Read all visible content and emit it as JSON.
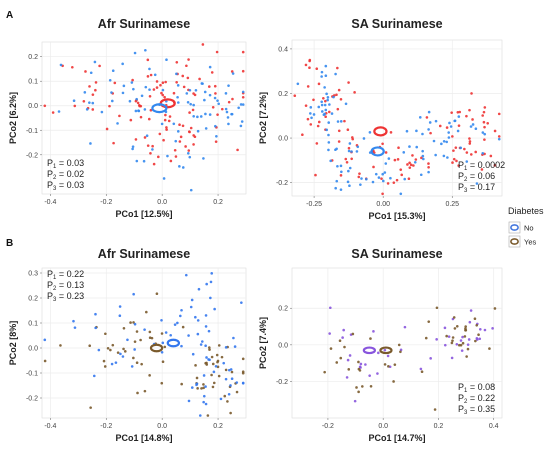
{
  "legend": {
    "title": "Diabetes",
    "entries": [
      {
        "label": "No",
        "color": "#4477dd"
      },
      {
        "label": "Yes",
        "color": "#7a5a2c"
      }
    ]
  },
  "chart_data": [
    {
      "panel_label": "A",
      "title": "Afr Surinamese",
      "type": "scatter",
      "xlabel": "PCo1 [12.5%]",
      "ylabel": "PCo2 [6.2%]",
      "xlim": [
        -0.43,
        0.3
      ],
      "ylim": [
        -0.36,
        0.26
      ],
      "xticks": [
        -0.4,
        -0.2,
        0.0,
        0.2
      ],
      "yticks": [
        -0.2,
        -0.1,
        0.0,
        0.1,
        0.2
      ],
      "tick_labels_x": [
        "-0.4",
        "-0.2",
        "0.0",
        "0.2"
      ],
      "tick_labels_y": [
        "-0.2",
        "-0.1",
        "0.0",
        "0.1",
        "0.2"
      ],
      "grid": true,
      "stats": [
        {
          "sub": "1",
          "value": "= 0.03"
        },
        {
          "sub": "2",
          "value": "= 0.02"
        },
        {
          "sub": "3",
          "value": "= 0.03"
        }
      ],
      "stats_position": "bottom-left",
      "series": [
        {
          "color": "#ee3333",
          "centroid": [
            0.02,
            0.01
          ],
          "centroid_r": [
            0.025,
            0.016
          ],
          "seed": 11,
          "n": 110,
          "clusters": [
            {
              "c": [
                0.12,
                0.06
              ],
              "s": [
                0.12,
                0.08
              ]
            },
            {
              "c": [
                -0.15,
                0.05
              ],
              "s": [
                0.12,
                0.07
              ]
            },
            {
              "c": [
                0.05,
                -0.1
              ],
              "s": [
                0.1,
                0.08
              ]
            }
          ]
        },
        {
          "color": "#3388ee",
          "centroid": [
            -0.01,
            -0.01
          ],
          "centroid_r": [
            0.025,
            0.016
          ],
          "seed": 23,
          "n": 100,
          "clusters": [
            {
              "c": [
                0.02,
                -0.12
              ],
              "s": [
                0.1,
                0.1
              ]
            },
            {
              "c": [
                -0.15,
                0.05
              ],
              "s": [
                0.1,
                0.08
              ]
            },
            {
              "c": [
                0.18,
                0.02
              ],
              "s": [
                0.07,
                0.06
              ]
            }
          ]
        }
      ]
    },
    {
      "panel_label": "",
      "title": "SA Surinamese",
      "type": "scatter",
      "xlabel": "PCo1 [15.3%]",
      "ylabel": "PCo2 [7.2%]",
      "xlim": [
        -0.33,
        0.43
      ],
      "ylim": [
        -0.26,
        0.44
      ],
      "xticks": [
        -0.25,
        0.0,
        0.25
      ],
      "yticks": [
        -0.2,
        0.0,
        0.2,
        0.4
      ],
      "tick_labels_x": [
        "-0.25",
        "0.00",
        "0.25"
      ],
      "tick_labels_y": [
        "-0.2",
        "0.0",
        "0.2",
        "0.4"
      ],
      "grid": true,
      "stats": [
        {
          "sub": "1",
          "value": "= 0.0002"
        },
        {
          "sub": "2",
          "value": "= 0.06"
        },
        {
          "sub": "3",
          "value": "= 0.17"
        }
      ],
      "stats_position": "bottom-right",
      "series": [
        {
          "color": "#ee3333",
          "centroid": [
            -0.01,
            0.03
          ],
          "centroid_r": [
            0.022,
            0.018
          ],
          "seed": 37,
          "n": 120,
          "clusters": [
            {
              "c": [
                -0.2,
                0.12
              ],
              "s": [
                0.06,
                0.12
              ]
            },
            {
              "c": [
                0.3,
                0.05
              ],
              "s": [
                0.06,
                0.1
              ]
            },
            {
              "c": [
                0.05,
                -0.12
              ],
              "s": [
                0.1,
                0.06
              ]
            }
          ]
        },
        {
          "color": "#3388ee",
          "centroid": [
            -0.02,
            -0.06
          ],
          "centroid_r": [
            0.022,
            0.018
          ],
          "seed": 41,
          "n": 110,
          "clusters": [
            {
              "c": [
                -0.05,
                -0.12
              ],
              "s": [
                0.1,
                0.06
              ]
            },
            {
              "c": [
                0.25,
                0.0
              ],
              "s": [
                0.07,
                0.08
              ]
            },
            {
              "c": [
                -0.2,
                0.1
              ],
              "s": [
                0.05,
                0.1
              ]
            }
          ]
        }
      ]
    },
    {
      "panel_label": "B",
      "title": "Afr Surinamese",
      "type": "scatter",
      "xlabel": "PCo1 [14.8%]",
      "ylabel": "PCo2 [8%]",
      "xlim": [
        -0.43,
        0.3
      ],
      "ylim": [
        -0.28,
        0.32
      ],
      "xticks": [
        -0.4,
        -0.2,
        0.0,
        0.2
      ],
      "yticks": [
        -0.2,
        -0.1,
        0.0,
        0.1,
        0.2,
        0.3
      ],
      "tick_labels_x": [
        "-0.4",
        "-0.2",
        "0.0",
        "0.2"
      ],
      "tick_labels_y": [
        "-0.2",
        "-0.1",
        "0.0",
        "0.1",
        "0.2",
        "0.3"
      ],
      "grid": true,
      "stats": [
        {
          "sub": "1",
          "value": "= 0.22"
        },
        {
          "sub": "2",
          "value": "= 0.13"
        },
        {
          "sub": "3",
          "value": "= 0.23"
        }
      ],
      "stats_position": "top-left",
      "series": [
        {
          "color": "#7a5a2c",
          "centroid": [
            -0.02,
            0.0
          ],
          "centroid_r": [
            0.02,
            0.013
          ],
          "seed": 53,
          "n": 75,
          "clusters": [
            {
              "c": [
                -0.1,
                0.0
              ],
              "s": [
                0.12,
                0.1
              ]
            },
            {
              "c": [
                0.2,
                -0.1
              ],
              "s": [
                0.06,
                0.08
              ]
            }
          ]
        },
        {
          "color": "#3377ee",
          "centroid": [
            0.04,
            0.02
          ],
          "centroid_r": [
            0.02,
            0.013
          ],
          "seed": 67,
          "n": 80,
          "clusters": [
            {
              "c": [
                0.15,
                0.1
              ],
              "s": [
                0.08,
                0.1
              ]
            },
            {
              "c": [
                0.2,
                -0.15
              ],
              "s": [
                0.06,
                0.06
              ]
            },
            {
              "c": [
                -0.15,
                0.02
              ],
              "s": [
                0.1,
                0.1
              ]
            }
          ]
        }
      ]
    },
    {
      "panel_label": "",
      "title": "SA Surinamese",
      "type": "scatter",
      "xlabel": "PCo1 [14.7%]",
      "ylabel": "PCo2 [7.4%]",
      "xlim": [
        -0.33,
        0.43
      ],
      "ylim": [
        -0.4,
        0.42
      ],
      "xticks": [
        -0.2,
        0.0,
        0.2,
        0.4
      ],
      "yticks": [
        -0.2,
        0.0,
        0.2
      ],
      "tick_labels_x": [
        "-0.2",
        "0.0",
        "0.2",
        "0.4"
      ],
      "tick_labels_y": [
        "-0.2",
        "0.0",
        "0.2"
      ],
      "grid": true,
      "stats": [
        {
          "sub": "1",
          "value": "= 0.08"
        },
        {
          "sub": "2",
          "value": "= 0.22"
        },
        {
          "sub": "3",
          "value": "= 0.35"
        }
      ],
      "stats_position": "bottom-right",
      "series": [
        {
          "color": "#8855dd",
          "centroid": [
            -0.05,
            -0.03
          ],
          "centroid_r": [
            0.02,
            0.015
          ],
          "seed": 71,
          "n": 45,
          "clusters": [
            {
              "c": [
                -0.05,
                -0.08
              ],
              "s": [
                0.1,
                0.12
              ]
            },
            {
              "c": [
                0.3,
                0.05
              ],
              "s": [
                0.06,
                0.06
              ]
            }
          ]
        },
        {
          "color": "#7a5a2c",
          "centroid": [
            0.01,
            -0.03
          ],
          "centroid_r": [
            0.02,
            0.015
          ],
          "seed": 83,
          "n": 50,
          "clusters": [
            {
              "c": [
                -0.05,
                -0.1
              ],
              "s": [
                0.1,
                0.12
              ]
            },
            {
              "c": [
                0.3,
                0.05
              ],
              "s": [
                0.07,
                0.06
              ]
            }
          ]
        }
      ]
    }
  ]
}
